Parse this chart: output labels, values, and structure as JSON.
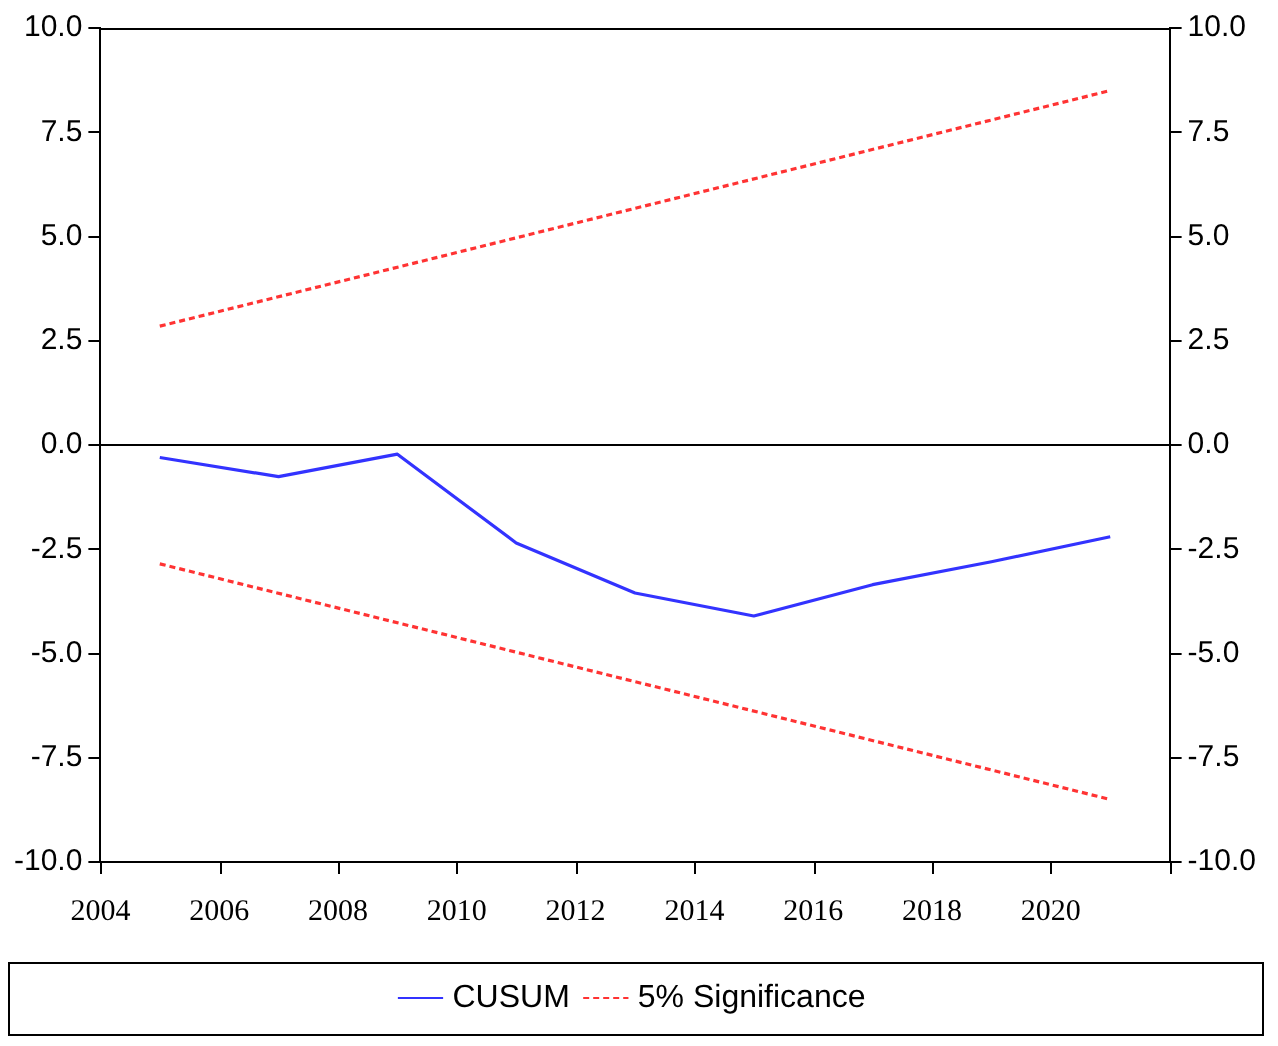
{
  "chart_data": {
    "type": "line",
    "series": [
      {
        "name": "CUSUM",
        "color": "#3333ff",
        "line_style": "solid",
        "x": [
          2005,
          2007,
          2009,
          2011,
          2013,
          2015,
          2017,
          2019,
          2021
        ],
        "values": [
          -0.3,
          -0.76,
          -0.22,
          -2.35,
          -3.55,
          -4.1,
          -3.35,
          -2.8,
          -2.2
        ]
      },
      {
        "name": "5% Significance",
        "color": "#ff3333",
        "line_style": "dashed",
        "x": [
          2005,
          2021
        ],
        "values": [
          2.85,
          8.5
        ]
      },
      {
        "color": "#ff3333",
        "line_style": "dashed",
        "x": [
          2005,
          2021
        ],
        "values": [
          -2.85,
          -8.5
        ]
      }
    ],
    "xlim": [
      2004,
      2022
    ],
    "xticks": [
      2004,
      2006,
      2008,
      2010,
      2012,
      2014,
      2016,
      2018,
      2020,
      {
        "value": 2022,
        "label": null
      }
    ],
    "ylim": [
      -10,
      10
    ],
    "yticks": [
      {
        "value": -10,
        "label": "-10.0"
      },
      {
        "value": -7.5,
        "label": "-7.5"
      },
      {
        "value": -5,
        "label": "-5.0"
      },
      {
        "value": -2.5,
        "label": "-2.5"
      },
      {
        "value": 0,
        "label": "0.0"
      },
      {
        "value": 2.5,
        "label": "2.5"
      },
      {
        "value": 5,
        "label": "5.0"
      },
      {
        "value": 7.5,
        "label": "7.5"
      },
      {
        "value": 10,
        "label": "10.0"
      }
    ],
    "y2lim": [
      -10,
      10
    ],
    "y2ticks": [
      {
        "value": -10,
        "label": "-10.0"
      },
      {
        "value": -7.5,
        "label": "-7.5"
      },
      {
        "value": -5,
        "label": "-5.0"
      },
      {
        "value": -2.5,
        "label": "-2.5"
      },
      {
        "value": 0,
        "label": "0.0"
      },
      {
        "value": 2.5,
        "label": "2.5"
      },
      {
        "value": 5,
        "label": "5.0"
      },
      {
        "value": 7.5,
        "label": "7.5"
      },
      {
        "value": 10,
        "label": "10.0"
      }
    ],
    "ref_lines": [
      {
        "axis": "y",
        "value": 0,
        "color": "#000000",
        "line_style": "solid"
      }
    ],
    "grid": false,
    "legend": "bottom",
    "marker": "none"
  }
}
